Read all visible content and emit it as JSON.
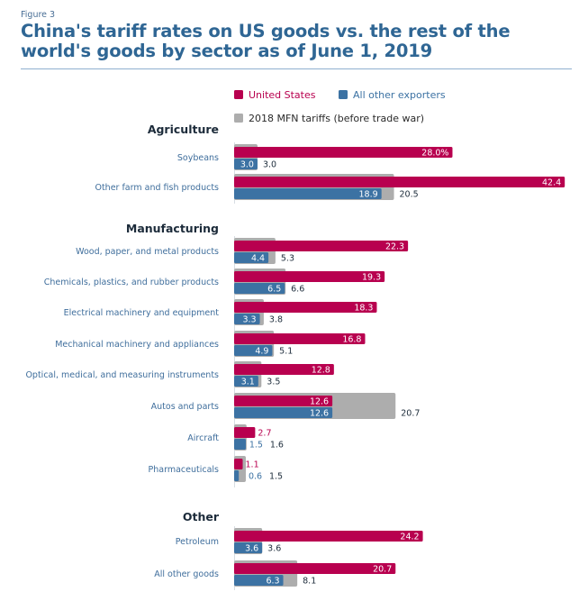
{
  "figure_label": "Figure 3",
  "title": "China's tariff rates on US goods vs. the rest of the world's goods by sector as of June 1, 2019",
  "colors": {
    "us": "#b8004f",
    "other": "#3c72a3",
    "mfn": "#adadad",
    "title": "#2f6694",
    "category_text": "#3f6e9c",
    "sector_text": "#1c2b3a"
  },
  "chart_data": {
    "type": "bar",
    "orientation": "horizontal",
    "title": "China's tariff rates on US goods vs. the rest of the world's goods by sector as of June 1, 2019",
    "xlabel": "",
    "ylabel": "",
    "unit": "%",
    "grid": false,
    "legend_position": "top",
    "legend": [
      {
        "key": "us",
        "label": "United States"
      },
      {
        "key": "other",
        "label": "All other exporters"
      },
      {
        "key": "mfn",
        "label": "2018 MFN tariffs (before trade war)"
      }
    ],
    "groups": [
      {
        "sector": "Agriculture",
        "categories": [
          {
            "name": "Soybeans",
            "us": 28.0,
            "other": 3.0,
            "mfn": 3.0,
            "us_label": "28.0%",
            "other_label": "3.0",
            "mfn_label": "3.0"
          },
          {
            "name": "Other farm and fish products",
            "us": 42.4,
            "other": 18.9,
            "mfn": 20.5,
            "us_label": "42.4",
            "other_label": "18.9",
            "mfn_label": "20.5"
          }
        ]
      },
      {
        "sector": "Manufacturing",
        "categories": [
          {
            "name": "Wood, paper, and metal products",
            "us": 22.3,
            "other": 4.4,
            "mfn": 5.3,
            "us_label": "22.3",
            "other_label": "4.4",
            "mfn_label": "5.3"
          },
          {
            "name": "Chemicals, plastics, and rubber products",
            "us": 19.3,
            "other": 6.5,
            "mfn": 6.6,
            "us_label": "19.3",
            "other_label": "6.5",
            "mfn_label": "6.6"
          },
          {
            "name": "Electrical machinery and equipment",
            "us": 18.3,
            "other": 3.3,
            "mfn": 3.8,
            "us_label": "18.3",
            "other_label": "3.3",
            "mfn_label": "3.8"
          },
          {
            "name": "Mechanical machinery and appliances",
            "us": 16.8,
            "other": 4.9,
            "mfn": 5.1,
            "us_label": "16.8",
            "other_label": "4.9",
            "mfn_label": "5.1"
          },
          {
            "name": "Optical, medical, and measuring instruments",
            "us": 12.8,
            "other": 3.1,
            "mfn": 3.5,
            "us_label": "12.8",
            "other_label": "3.1",
            "mfn_label": "3.5"
          },
          {
            "name": "Autos and parts",
            "us": 12.6,
            "other": 12.6,
            "mfn": 20.7,
            "us_label": "12.6",
            "other_label": "12.6",
            "mfn_label": "20.7"
          },
          {
            "name": "Aircraft",
            "us": 2.7,
            "other": 1.5,
            "mfn": 1.6,
            "us_label": "2.7",
            "other_label": "1.5",
            "mfn_label": "1.6"
          },
          {
            "name": "Pharmaceuticals",
            "us": 1.1,
            "other": 0.6,
            "mfn": 1.5,
            "us_label": "1.1",
            "other_label": "0.6",
            "mfn_label": "1.5"
          }
        ]
      },
      {
        "sector": "Other",
        "categories": [
          {
            "name": "Petroleum",
            "us": 24.2,
            "other": 3.6,
            "mfn": 3.6,
            "us_label": "24.2",
            "other_label": "3.6",
            "mfn_label": "3.6"
          },
          {
            "name": "All other goods",
            "us": 20.7,
            "other": 6.3,
            "mfn": 8.1,
            "us_label": "20.7",
            "other_label": "6.3",
            "mfn_label": "8.1"
          }
        ]
      }
    ],
    "xlim": [
      0,
      42.4
    ]
  }
}
